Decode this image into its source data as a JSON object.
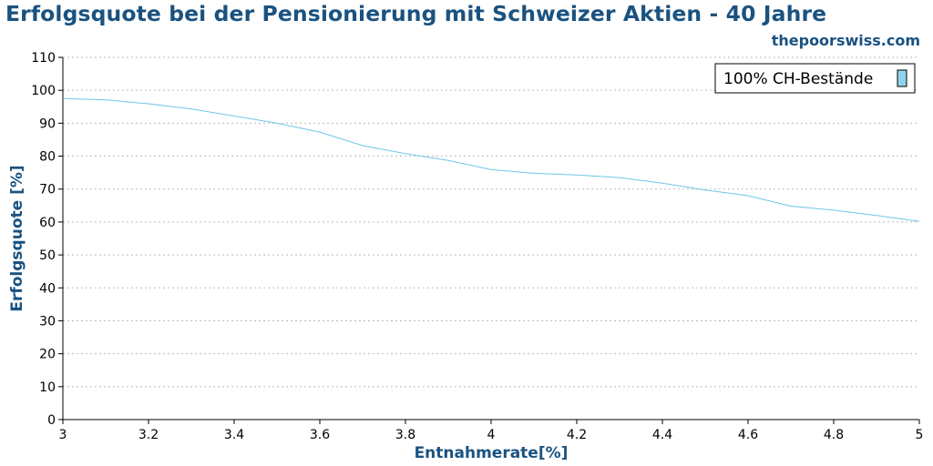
{
  "header": {
    "title": "Erfolgsquote bei der Pensionierung mit Schweizer Aktien - 40 Jahre",
    "source": "thepoorswiss.com"
  },
  "chart_data": {
    "type": "line",
    "xlabel": "Entnahmerate[%]",
    "ylabel": "Erfolgsquote [%]",
    "xlim": [
      3,
      5
    ],
    "ylim": [
      0,
      110
    ],
    "x_ticks": [
      "3",
      "3.2",
      "3.4",
      "3.6",
      "3.8",
      "4",
      "4.2",
      "4.4",
      "4.6",
      "4.8",
      "5"
    ],
    "y_ticks": [
      "0",
      "10",
      "20",
      "30",
      "40",
      "50",
      "60",
      "70",
      "80",
      "90",
      "100",
      "110"
    ],
    "grid": "horizontal dotted",
    "legend_position": "top-right",
    "colors": {
      "series": "#6ec6e6",
      "axis_label": "#1a5280"
    },
    "series": [
      {
        "name": "100% CH-Bestände",
        "x": [
          3.0,
          3.1,
          3.2,
          3.3,
          3.4,
          3.5,
          3.6,
          3.7,
          3.8,
          3.9,
          4.0,
          4.1,
          4.2,
          4.3,
          4.4,
          4.5,
          4.6,
          4.7,
          4.8,
          4.9,
          5.0
        ],
        "y": [
          97.5,
          97.1,
          95.9,
          94.3,
          92.2,
          90.0,
          87.3,
          83.2,
          80.8,
          78.7,
          75.9,
          74.8,
          74.3,
          73.5,
          71.8,
          69.7,
          68.0,
          64.8,
          63.6,
          62.0,
          60.2
        ]
      }
    ]
  }
}
